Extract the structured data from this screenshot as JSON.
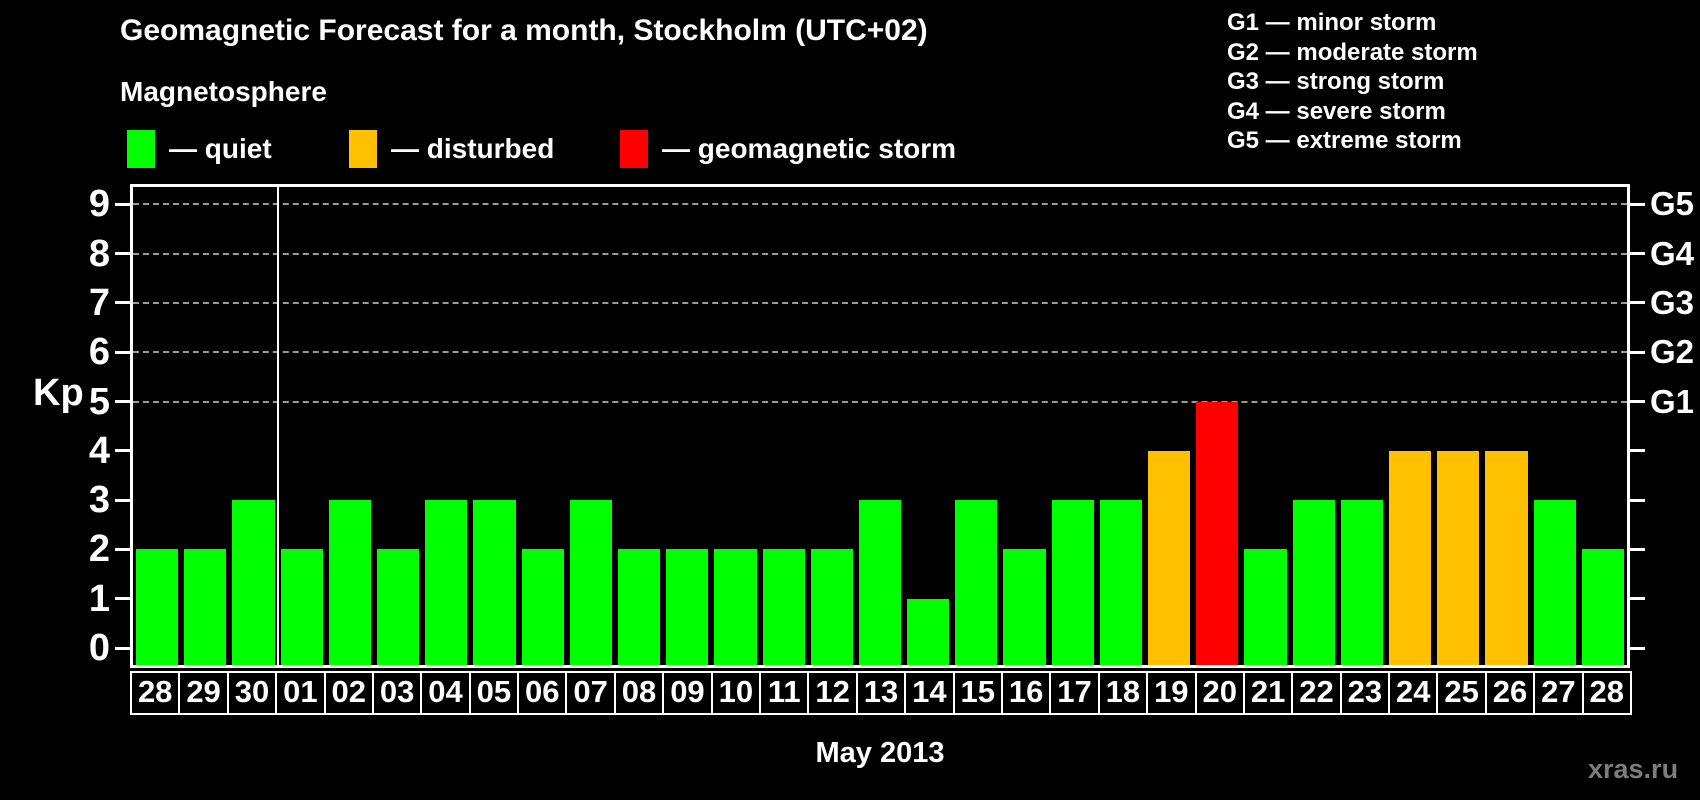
{
  "header": {
    "title": "Geomagnetic Forecast for a month, Stockholm (UTC+02)",
    "subtitle": "Magnetosphere"
  },
  "legend": {
    "items": [
      {
        "name": "quiet",
        "label": "— quiet",
        "color": "#00ff00"
      },
      {
        "name": "disturbed",
        "label": "— disturbed",
        "color": "#ffc000"
      },
      {
        "name": "geomagnetic-storm",
        "label": "— geomagnetic storm",
        "color": "#ff0000"
      }
    ]
  },
  "g_scale_legend": [
    "G1 — minor storm",
    "G2 — moderate storm",
    "G3 — strong storm",
    "G4 — severe storm",
    "G5 — extreme storm"
  ],
  "y_axis": {
    "label": "Kp"
  },
  "x_axis": {
    "title": "May 2013"
  },
  "watermark": "xras.ru",
  "chart_data": {
    "type": "bar",
    "title": "Geomagnetic Forecast for a month, Stockholm (UTC+02)",
    "ylabel": "Kp",
    "xlabel": "May 2013",
    "ylim": [
      0,
      9
    ],
    "y_ticks": [
      0,
      1,
      2,
      3,
      4,
      5,
      6,
      7,
      8,
      9
    ],
    "gridlines_at": [
      5,
      6,
      7,
      8,
      9
    ],
    "grid": "horizontal dashed gray lines at Kp 5 through 9 only",
    "legend_position": "top",
    "categories": [
      "28",
      "29",
      "30",
      "01",
      "02",
      "03",
      "04",
      "05",
      "06",
      "07",
      "08",
      "09",
      "10",
      "11",
      "12",
      "13",
      "14",
      "15",
      "16",
      "17",
      "18",
      "19",
      "20",
      "21",
      "22",
      "23",
      "24",
      "25",
      "26",
      "27",
      "28"
    ],
    "values": [
      2,
      2,
      3,
      2,
      3,
      2,
      3,
      3,
      2,
      3,
      2,
      2,
      2,
      2,
      2,
      3,
      1,
      3,
      2,
      3,
      3,
      4,
      5,
      2,
      3,
      3,
      4,
      4,
      4,
      3,
      2
    ],
    "month_separator_after_index": 2,
    "right_axis_labels": [
      {
        "kp": 5,
        "label": "G1"
      },
      {
        "kp": 6,
        "label": "G2"
      },
      {
        "kp": 7,
        "label": "G3"
      },
      {
        "kp": 8,
        "label": "G4"
      },
      {
        "kp": 9,
        "label": "G5"
      }
    ],
    "bar_colors": {
      "quiet": "#00ff00",
      "disturbed": "#ffc000",
      "storm": "#ff0000"
    },
    "color_rule": {
      "quiet_max_kp": 3,
      "disturbed_kp": 4,
      "storm_min_kp": 5
    }
  }
}
